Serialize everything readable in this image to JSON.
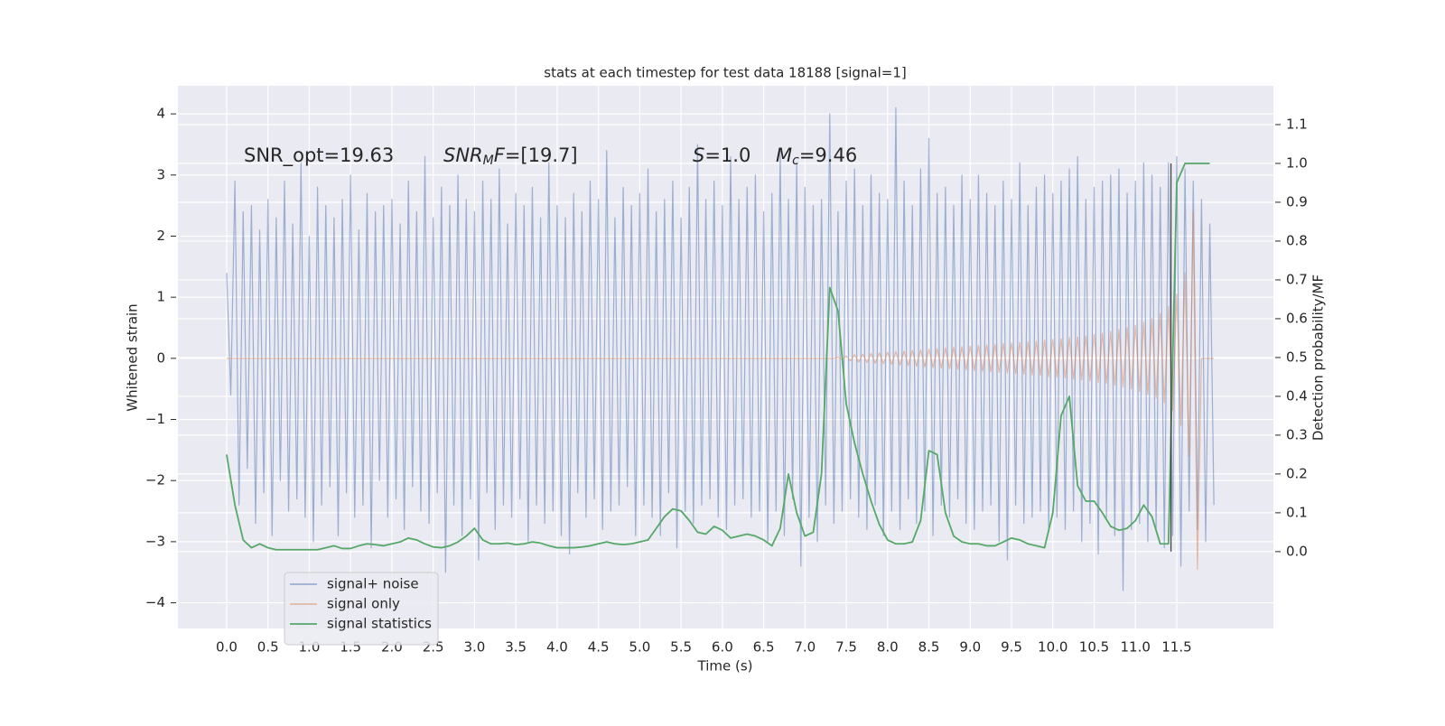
{
  "chart_data": {
    "type": "line",
    "title": "stats at each timestep for test data 18188 [signal=1]",
    "xlabel": "Time (s)",
    "ylabel": "Whitened strain",
    "y2label": "Detection probability/MF",
    "annotations": [
      {
        "segments": [
          {
            "text": "SNR_opt=19.63"
          }
        ]
      },
      {
        "segments": [
          {
            "text": "SNR",
            "style": "italic"
          },
          {
            "text": "M",
            "style": "sub"
          },
          {
            "text": "F",
            "style": "italic"
          },
          {
            "text": "=[19.7]"
          }
        ]
      },
      {
        "segments": [
          {
            "text": "S",
            "style": "italic"
          },
          {
            "text": "=1.0"
          }
        ]
      },
      {
        "segments": [
          {
            "text": "M",
            "style": "italic"
          },
          {
            "text": "c",
            "style": "sub"
          },
          {
            "text": "=9.46"
          }
        ]
      }
    ],
    "xlim": [
      -0.59,
      12.67
    ],
    "ylim": [
      -4.42,
      4.46
    ],
    "y2lim": [
      -0.198,
      1.2
    ],
    "xticks": [
      {
        "value": 0,
        "label": "0.0"
      },
      0.5,
      {
        "value": 1,
        "label": "1.0"
      },
      1.5,
      {
        "value": 2,
        "label": "2.0"
      },
      2.5,
      {
        "value": 3,
        "label": "3.0"
      },
      3.5,
      {
        "value": 4,
        "label": "4.0"
      },
      4.5,
      {
        "value": 5,
        "label": "5.0"
      },
      5.5,
      {
        "value": 6,
        "label": "6.0"
      },
      6.5,
      {
        "value": 7,
        "label": "7.0"
      },
      7.5,
      {
        "value": 8,
        "label": "8.0"
      },
      8.5,
      {
        "value": 9,
        "label": "9.0"
      },
      9.5,
      {
        "value": 10,
        "label": "10.0"
      },
      10.5,
      {
        "value": 11,
        "label": "11.0"
      },
      11.5
    ],
    "yticks": [
      {
        "value": -4,
        "label": "−4"
      },
      {
        "value": -3,
        "label": "−3"
      },
      {
        "value": -2,
        "label": "−2"
      },
      {
        "value": -1,
        "label": "−1"
      },
      0,
      1,
      2,
      3,
      4
    ],
    "y2ticks": [
      {
        "value": 0,
        "label": "0.0"
      },
      0.1,
      0.2,
      0.3,
      0.4,
      0.5,
      0.6,
      0.7,
      0.8,
      0.9,
      {
        "value": 1,
        "label": "1.0"
      },
      1.1
    ],
    "grid": true,
    "legend": "lower left",
    "vline": {
      "x": 11.43,
      "from": 0,
      "to": 1,
      "color": "#444444"
    },
    "x": [
      0,
      0.05,
      0.1,
      0.15,
      0.2,
      0.25,
      0.3,
      0.35,
      0.4,
      0.45,
      0.5,
      0.55,
      0.6,
      0.65,
      0.7,
      0.75,
      0.8,
      0.85,
      0.9,
      0.95,
      1,
      1.05,
      1.1,
      1.15,
      1.2,
      1.25,
      1.3,
      1.35,
      1.4,
      1.45,
      1.5,
      1.55,
      1.6,
      1.65,
      1.7,
      1.75,
      1.8,
      1.85,
      1.9,
      1.95,
      2,
      2.05,
      2.1,
      2.15,
      2.2,
      2.25,
      2.3,
      2.35,
      2.4,
      2.45,
      2.5,
      2.55,
      2.6,
      2.65,
      2.7,
      2.75,
      2.8,
      2.85,
      2.9,
      2.95,
      3,
      3.05,
      3.1,
      3.15,
      3.2,
      3.25,
      3.3,
      3.35,
      3.4,
      3.45,
      3.5,
      3.55,
      3.6,
      3.65,
      3.7,
      3.75,
      3.8,
      3.85,
      3.9,
      3.95,
      4,
      4.05,
      4.1,
      4.15,
      4.2,
      4.25,
      4.3,
      4.35,
      4.4,
      4.45,
      4.5,
      4.55,
      4.6,
      4.65,
      4.7,
      4.75,
      4.8,
      4.85,
      4.9,
      4.95,
      5,
      5.05,
      5.1,
      5.15,
      5.2,
      5.25,
      5.3,
      5.35,
      5.4,
      5.45,
      5.5,
      5.55,
      5.6,
      5.65,
      5.7,
      5.75,
      5.8,
      5.85,
      5.9,
      5.95,
      6,
      6.05,
      6.1,
      6.15,
      6.2,
      6.25,
      6.3,
      6.35,
      6.4,
      6.45,
      6.5,
      6.55,
      6.6,
      6.65,
      6.7,
      6.75,
      6.8,
      6.85,
      6.9,
      6.95,
      7,
      7.05,
      7.1,
      7.15,
      7.2,
      7.25,
      7.3,
      7.35,
      7.4,
      7.45,
      7.5,
      7.55,
      7.6,
      7.65,
      7.7,
      7.75,
      7.8,
      7.85,
      7.9,
      7.95,
      8,
      8.05,
      8.1,
      8.15,
      8.2,
      8.25,
      8.3,
      8.35,
      8.4,
      8.45,
      8.5,
      8.55,
      8.6,
      8.65,
      8.7,
      8.75,
      8.8,
      8.85,
      8.9,
      8.95,
      9,
      9.05,
      9.1,
      9.15,
      9.2,
      9.25,
      9.3,
      9.35,
      9.4,
      9.45,
      9.5,
      9.55,
      9.6,
      9.65,
      9.7,
      9.75,
      9.8,
      9.85,
      9.9,
      9.95,
      10,
      10.05,
      10.1,
      10.15,
      10.2,
      10.25,
      10.3,
      10.35,
      10.4,
      10.45,
      10.5,
      10.55,
      10.6,
      10.65,
      10.7,
      10.75,
      10.8,
      10.85,
      10.9,
      10.95,
      11,
      11.05,
      11.1,
      11.15,
      11.2,
      11.25,
      11.3,
      11.35,
      11.4,
      11.45,
      11.5,
      11.55,
      11.6,
      11.65,
      11.7,
      11.75,
      11.8,
      11.85,
      11.9,
      11.95
    ],
    "series": [
      {
        "name": "signal+ noise",
        "color": "#4c72b0",
        "opacity": 0.5,
        "values": [
          1.4,
          -0.6,
          2.9,
          -2.4,
          2.4,
          -1.8,
          2.5,
          -2.7,
          2.1,
          -2.2,
          2.6,
          -2.9,
          2.3,
          -2.0,
          2.9,
          -2.5,
          2.2,
          -2.3,
          3.2,
          -2.6,
          2.0,
          -3.0,
          2.8,
          -2.4,
          2.5,
          -2.1,
          2.3,
          -2.9,
          2.6,
          -2.2,
          3.0,
          -2.6,
          2.1,
          -2.4,
          2.7,
          -3.1,
          2.4,
          -2.0,
          2.5,
          -2.6,
          2.6,
          -2.3,
          2.2,
          -2.8,
          2.9,
          -2.1,
          2.4,
          -2.5,
          3.3,
          -2.7,
          2.3,
          -2.2,
          2.8,
          -3.5,
          2.5,
          -2.4,
          3.0,
          -2.9,
          2.6,
          -2.3,
          2.4,
          -3.3,
          2.9,
          -2.2,
          2.6,
          -2.8,
          3.1,
          -2.4,
          2.2,
          -2.6,
          2.7,
          -2.3,
          2.5,
          -3.0,
          2.8,
          -2.4,
          2.3,
          -2.7,
          3.2,
          -2.5,
          2.5,
          -2.9,
          2.3,
          -3.2,
          2.7,
          -2.2,
          2.4,
          -2.6,
          2.9,
          -2.3,
          2.6,
          -2.8,
          3.4,
          -2.5,
          2.3,
          -2.4,
          2.8,
          -2.1,
          2.5,
          -2.9,
          2.7,
          -2.4,
          3.1,
          -2.6,
          2.4,
          -2.9,
          2.6,
          -2.2,
          2.9,
          -3.1,
          2.3,
          -2.5,
          2.8,
          -2.7,
          3.5,
          -2.4,
          2.6,
          -2.3,
          2.9,
          -2.6,
          2.5,
          -2.8,
          3.3,
          -2.4,
          2.6,
          -2.3,
          2.8,
          -2.6,
          3.0,
          -2.5,
          2.4,
          -3.0,
          2.7,
          -2.5,
          3.4,
          -2.9,
          2.6,
          -2.3,
          3.2,
          -3.4,
          2.8,
          -2.6,
          2.5,
          -3.0,
          2.6,
          -2.4,
          4.0,
          -2.7,
          2.4,
          -2.5,
          2.9,
          -2.3,
          3.1,
          -2.6,
          2.5,
          -2.8,
          3.0,
          -2.4,
          2.7,
          -2.9,
          2.6,
          -2.5,
          4.1,
          -2.8,
          2.9,
          -2.3,
          2.5,
          -2.7,
          3.1,
          -2.5,
          3.6,
          -2.9,
          2.7,
          -2.4,
          2.8,
          -2.6,
          2.5,
          -2.3,
          3.0,
          -2.7,
          2.6,
          -2.8,
          3.0,
          -2.5,
          2.7,
          -2.4,
          2.5,
          -3.0,
          2.9,
          -3.3,
          2.6,
          -2.4,
          3.2,
          -2.7,
          2.5,
          -2.6,
          2.8,
          -2.5,
          3.0,
          -2.8,
          2.7,
          -2.6,
          2.9,
          -2.8,
          3.1,
          -2.5,
          3.3,
          -3.0,
          2.6,
          -2.7,
          2.8,
          -3.2,
          2.9,
          -2.6,
          3.0,
          -2.9,
          3.1,
          -3.8,
          2.7,
          -2.8,
          2.9,
          -2.7,
          3.2,
          -3.0,
          3.0,
          -2.8,
          2.8,
          -3.1,
          3.2,
          -2.9,
          3.3,
          -3.4,
          3.1,
          -2.5,
          2.9,
          -2.8,
          2.6,
          -3.0,
          2.2,
          -2.4
        ]
      },
      {
        "name": "signal only",
        "color": "#dd8452",
        "opacity": 0.5,
        "values": [
          0,
          0,
          0,
          0,
          0,
          0,
          0,
          0,
          0,
          0,
          0,
          0,
          0,
          0,
          0,
          0,
          0,
          0,
          0,
          0,
          0,
          0,
          0,
          0,
          0,
          0,
          0,
          0,
          0,
          0,
          0,
          0,
          0,
          0,
          0,
          0,
          0,
          0,
          0,
          0,
          0,
          0,
          0,
          0,
          0,
          0,
          0,
          0,
          0,
          0,
          0,
          0,
          0,
          0,
          0,
          0,
          0,
          0,
          0,
          0,
          0,
          0,
          0,
          0,
          0,
          0,
          0,
          0,
          0,
          0,
          0,
          0,
          0,
          0,
          0,
          0,
          0,
          0,
          0,
          0,
          0,
          0,
          0,
          0,
          0,
          0,
          0,
          0,
          0,
          0,
          0,
          0,
          0,
          0,
          0,
          0,
          0,
          0,
          0,
          0,
          0,
          0,
          0,
          0,
          0,
          0,
          0,
          0,
          0,
          0,
          0,
          0,
          0,
          0,
          0,
          0,
          0,
          0,
          0,
          0,
          0,
          0,
          0,
          0,
          0,
          0,
          0,
          0,
          0,
          0,
          0,
          0,
          0,
          0,
          0,
          0,
          0,
          0,
          0,
          0,
          0,
          0,
          0,
          0,
          0,
          0,
          0,
          0,
          0.02,
          -0.02,
          0.04,
          -0.04,
          0.06,
          -0.06,
          0.07,
          -0.07,
          0.08,
          -0.08,
          0.09,
          -0.09,
          0.1,
          -0.1,
          0.11,
          -0.11,
          0.12,
          -0.12,
          0.13,
          -0.13,
          0.14,
          -0.14,
          0.15,
          -0.15,
          0.16,
          -0.16,
          0.17,
          -0.17,
          0.18,
          -0.18,
          0.19,
          -0.19,
          0.2,
          -0.2,
          0.21,
          -0.21,
          0.22,
          -0.22,
          0.23,
          -0.23,
          0.24,
          -0.24,
          0.25,
          -0.25,
          0.26,
          -0.26,
          0.27,
          -0.27,
          0.28,
          -0.28,
          0.3,
          -0.3,
          0.31,
          -0.31,
          0.32,
          -0.32,
          0.34,
          -0.34,
          0.35,
          -0.35,
          0.37,
          -0.37,
          0.39,
          -0.39,
          0.41,
          -0.41,
          0.44,
          -0.44,
          0.47,
          -0.47,
          0.5,
          -0.5,
          0.54,
          -0.54,
          0.59,
          -0.59,
          0.65,
          -0.65,
          0.73,
          -0.73,
          0.85,
          -0.85,
          1.05,
          -1.1,
          1.4,
          -1.6,
          2.4,
          -3.45,
          0,
          0,
          0,
          0
        ]
      },
      {
        "name": "signal statistics",
        "color": "#55a868",
        "opacity": 1,
        "axis": "y2",
        "x": [
          0,
          0.1,
          0.2,
          0.3,
          0.4,
          0.5,
          0.6,
          0.7,
          0.8,
          0.9,
          1,
          1.1,
          1.2,
          1.3,
          1.4,
          1.5,
          1.6,
          1.7,
          1.8,
          1.9,
          2,
          2.1,
          2.2,
          2.3,
          2.4,
          2.5,
          2.6,
          2.7,
          2.8,
          2.9,
          3,
          3.1,
          3.2,
          3.3,
          3.4,
          3.5,
          3.6,
          3.7,
          3.8,
          3.9,
          4,
          4.1,
          4.2,
          4.3,
          4.4,
          4.5,
          4.6,
          4.7,
          4.8,
          4.9,
          5,
          5.1,
          5.2,
          5.3,
          5.4,
          5.5,
          5.6,
          5.7,
          5.8,
          5.9,
          6,
          6.1,
          6.2,
          6.3,
          6.4,
          6.5,
          6.6,
          6.7,
          6.8,
          6.9,
          7,
          7.1,
          7.2,
          7.3,
          7.4,
          7.5,
          7.6,
          7.7,
          7.8,
          7.9,
          8,
          8.1,
          8.2,
          8.3,
          8.4,
          8.5,
          8.6,
          8.7,
          8.8,
          8.9,
          9,
          9.1,
          9.2,
          9.3,
          9.4,
          9.5,
          9.6,
          9.7,
          9.8,
          9.9,
          10,
          10.1,
          10.2,
          10.3,
          10.4,
          10.5,
          10.6,
          10.7,
          10.8,
          10.9,
          11,
          11.1,
          11.2,
          11.3,
          11.4,
          11.5,
          11.6,
          11.7,
          11.8,
          11.9
        ],
        "values": [
          0.25,
          0.12,
          0.03,
          0.01,
          0.02,
          0.01,
          0.005,
          0.005,
          0.005,
          0.005,
          0.005,
          0.005,
          0.01,
          0.015,
          0.008,
          0.008,
          0.015,
          0.02,
          0.018,
          0.015,
          0.02,
          0.025,
          0.035,
          0.03,
          0.02,
          0.012,
          0.01,
          0.015,
          0.025,
          0.04,
          0.06,
          0.03,
          0.02,
          0.02,
          0.022,
          0.018,
          0.02,
          0.025,
          0.022,
          0.015,
          0.01,
          0.01,
          0.01,
          0.012,
          0.015,
          0.02,
          0.025,
          0.02,
          0.018,
          0.02,
          0.025,
          0.03,
          0.06,
          0.09,
          0.11,
          0.105,
          0.08,
          0.05,
          0.045,
          0.065,
          0.055,
          0.035,
          0.04,
          0.045,
          0.04,
          0.03,
          0.015,
          0.06,
          0.2,
          0.1,
          0.04,
          0.05,
          0.2,
          0.68,
          0.62,
          0.38,
          0.28,
          0.2,
          0.13,
          0.07,
          0.03,
          0.02,
          0.02,
          0.025,
          0.08,
          0.26,
          0.25,
          0.1,
          0.04,
          0.025,
          0.02,
          0.02,
          0.015,
          0.015,
          0.025,
          0.035,
          0.03,
          0.02,
          0.015,
          0.01,
          0.1,
          0.35,
          0.4,
          0.17,
          0.13,
          0.13,
          0.1,
          0.065,
          0.055,
          0.06,
          0.08,
          0.12,
          0.09,
          0.02,
          0.02,
          0.95,
          1.0,
          1.0,
          1.0,
          1.0
        ]
      }
    ]
  }
}
